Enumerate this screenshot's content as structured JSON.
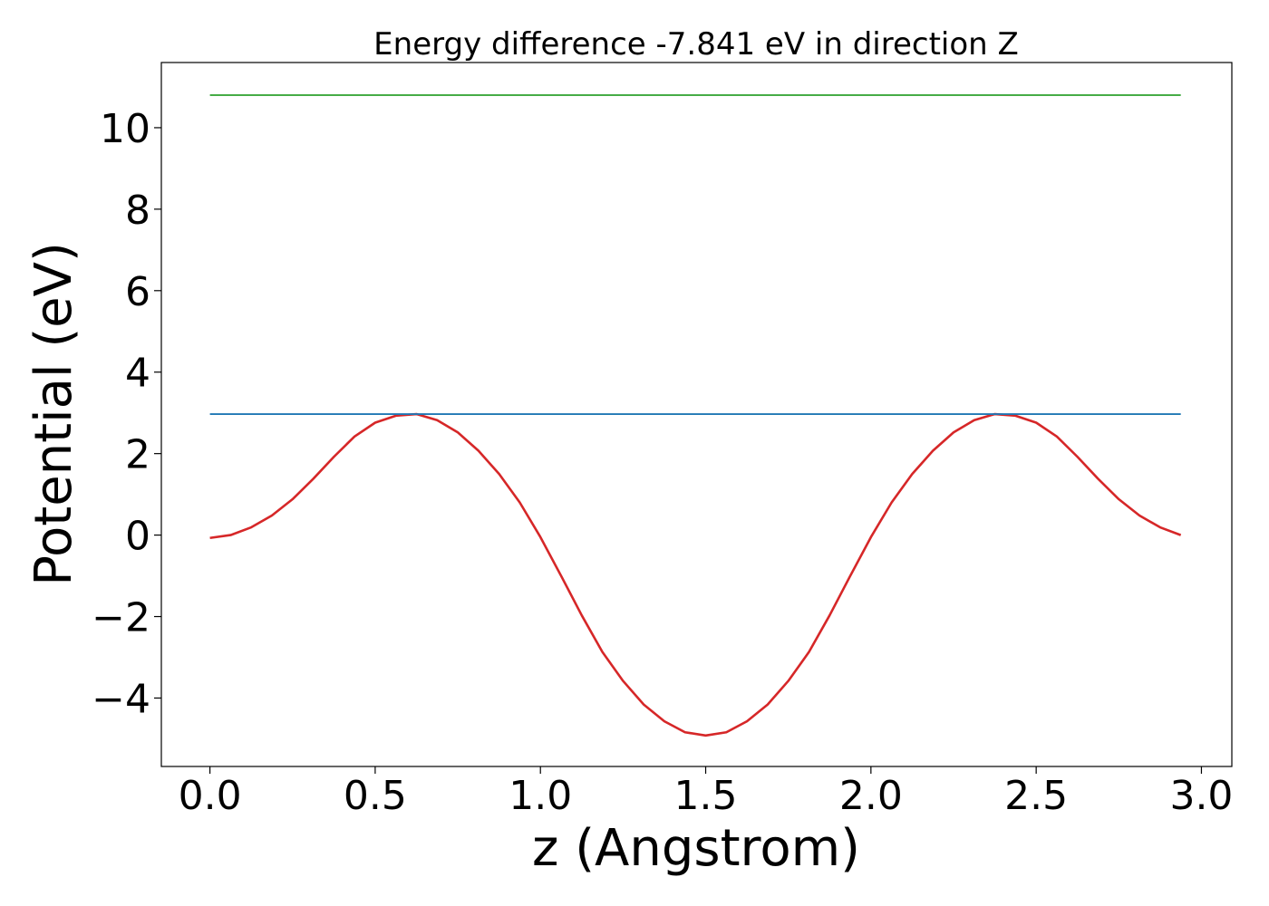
{
  "chart_data": {
    "type": "line",
    "title": "Energy difference -7.841 eV in direction Z",
    "xlabel": "z (Angstrom)",
    "ylabel": "Potential (eV)",
    "xlim": [
      -0.147,
      3.092
    ],
    "ylim": [
      -5.68,
      11.6
    ],
    "xticks": [
      0.0,
      0.5,
      1.0,
      1.5,
      2.0,
      2.5,
      3.0
    ],
    "xtick_labels": [
      "0.0",
      "0.5",
      "1.0",
      "1.5",
      "2.0",
      "2.5",
      "3.0"
    ],
    "yticks": [
      -4,
      -2,
      0,
      2,
      4,
      6,
      8,
      10
    ],
    "ytick_labels": [
      "−4",
      "−2",
      "0",
      "2",
      "4",
      "6",
      "8",
      "10"
    ],
    "grid": false,
    "series": [
      {
        "color": "#d62728",
        "x": [
          0.0,
          0.0625,
          0.125,
          0.1875,
          0.25,
          0.3125,
          0.375,
          0.4375,
          0.5,
          0.5625,
          0.625,
          0.6875,
          0.75,
          0.8125,
          0.875,
          0.9375,
          1.0,
          1.0625,
          1.125,
          1.1875,
          1.25,
          1.3125,
          1.375,
          1.4375,
          1.5,
          1.5625,
          1.625,
          1.6875,
          1.75,
          1.8125,
          1.875,
          1.9375,
          2.0,
          2.0625,
          2.125,
          2.1875,
          2.25,
          2.3125,
          2.375,
          2.4375,
          2.5,
          2.5625,
          2.625,
          2.6875,
          2.75,
          2.8125,
          2.875,
          2.9375
        ],
        "y": [
          -0.07,
          0.0,
          0.19,
          0.48,
          0.88,
          1.38,
          1.92,
          2.42,
          2.76,
          2.93,
          2.97,
          2.82,
          2.52,
          2.07,
          1.5,
          0.8,
          -0.05,
          -1.0,
          -1.97,
          -2.87,
          -3.58,
          -4.16,
          -4.57,
          -4.84,
          -4.92,
          -4.84,
          -4.57,
          -4.16,
          -3.58,
          -2.87,
          -1.97,
          -1.0,
          -0.05,
          0.8,
          1.5,
          2.07,
          2.52,
          2.82,
          2.97,
          2.93,
          2.76,
          2.42,
          1.92,
          1.38,
          0.88,
          0.48,
          0.19,
          0.0
        ]
      },
      {
        "color": "#1f77b4",
        "x": [
          0.0,
          2.9375
        ],
        "y": [
          2.97,
          2.97
        ]
      },
      {
        "color": "#2ca02c",
        "x": [
          0.0,
          2.9375
        ],
        "y": [
          10.8,
          10.8
        ]
      }
    ]
  }
}
